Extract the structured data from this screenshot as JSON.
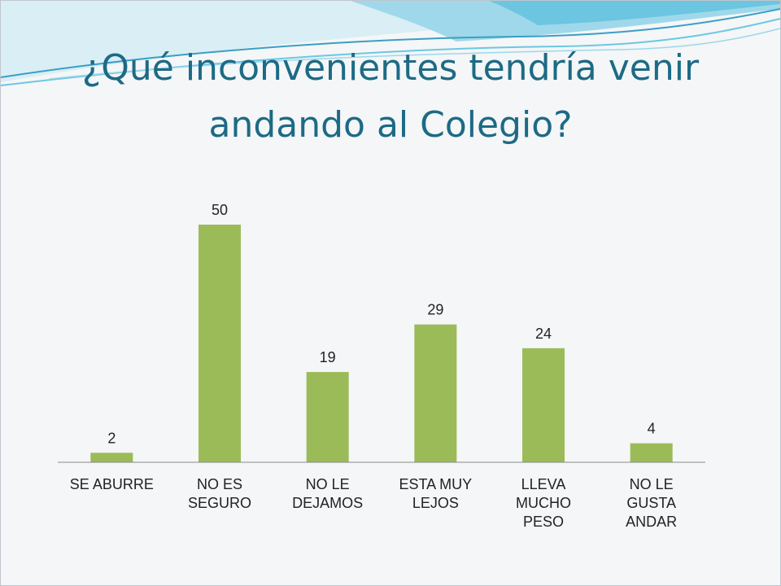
{
  "slide": {
    "title": "¿Qué inconvenientes tendría venir andando al Colegio?"
  },
  "chart_data": {
    "type": "bar",
    "categories": [
      "SE ABURRE",
      "NO ES SEGURO",
      "NO LE DEJAMOS",
      "ESTA MUY LEJOS",
      "LLEVA MUCHO PESO",
      "NO LE GUSTA ANDAR"
    ],
    "category_lines": [
      [
        "SE ABURRE"
      ],
      [
        "NO ES",
        "SEGURO"
      ],
      [
        "NO LE",
        "DEJAMOS"
      ],
      [
        "ESTA MUY",
        "LEJOS"
      ],
      [
        "LLEVA",
        "MUCHO",
        "PESO"
      ],
      [
        "NO LE",
        "GUSTA",
        "ANDAR"
      ]
    ],
    "values": [
      2,
      50,
      19,
      29,
      24,
      4
    ],
    "data_labels": [
      "2",
      "50",
      "19",
      "29",
      "24",
      "4"
    ],
    "ylim": [
      0,
      50
    ],
    "grid": false,
    "legend": "none",
    "bar_color": "#9bbb59"
  }
}
